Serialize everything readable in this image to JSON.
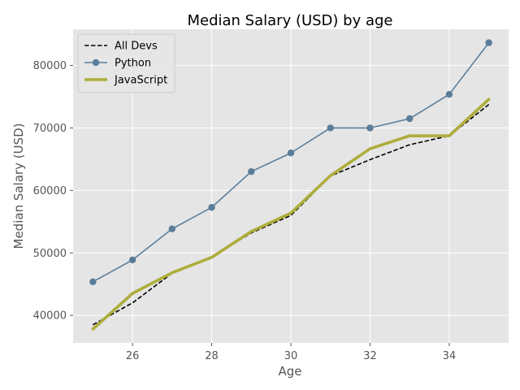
{
  "chart_data": {
    "type": "line",
    "title": "Median Salary (USD) by age",
    "xlabel": "Age",
    "ylabel": "Median Salary (USD)",
    "x": [
      25,
      26,
      27,
      28,
      29,
      30,
      31,
      32,
      33,
      34,
      35
    ],
    "xlim": [
      24.5,
      35.5
    ],
    "ylim": [
      35600,
      85800
    ],
    "x_ticks": [
      26,
      28,
      30,
      32,
      34
    ],
    "y_ticks": [
      40000,
      50000,
      60000,
      70000,
      80000
    ],
    "grid": true,
    "legend_position": "top-left",
    "background": "#e5e5e5",
    "series": [
      {
        "name": "All Devs",
        "values": [
          38496,
          42000,
          46752,
          49320,
          53200,
          56000,
          62316,
          64928,
          67317,
          68748,
          73752
        ],
        "color": "#000000",
        "style": "dashed",
        "marker": "none"
      },
      {
        "name": "Python",
        "values": [
          45372,
          48876,
          53850,
          57287,
          63016,
          65998,
          70003,
          70000,
          71496,
          75370,
          83640
        ],
        "color": "#5a7d9a",
        "style": "solid",
        "marker": "circle"
      },
      {
        "name": "JavaScript",
        "values": [
          37810,
          43515,
          46823,
          49293,
          53437,
          56373,
          62375,
          66674,
          68745,
          68746,
          74583
        ],
        "color": "#adad3b",
        "style": "solid-thick",
        "marker": "none"
      }
    ]
  }
}
